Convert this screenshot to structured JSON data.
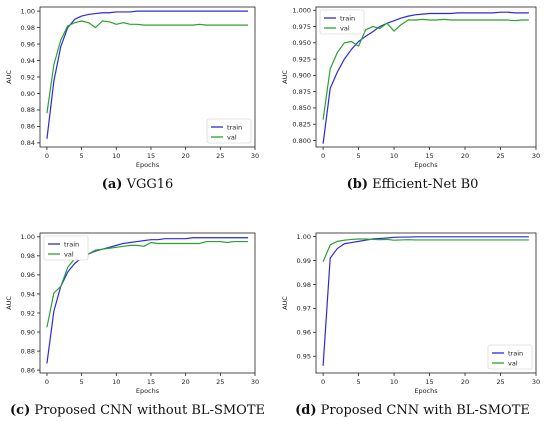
{
  "chart_data": [
    {
      "type": "line",
      "caption_label": "(a)",
      "caption_text": "VGG16",
      "xlabel": "Epochs",
      "ylabel": "AUC",
      "xlim": [
        -1,
        30
      ],
      "ylim": [
        0.835,
        1.005
      ],
      "xticks": [
        0,
        5,
        10,
        15,
        20,
        25,
        30
      ],
      "yticks": [
        0.84,
        0.86,
        0.88,
        0.9,
        0.92,
        0.94,
        0.96,
        0.98,
        1.0
      ],
      "ytick_labels": [
        "0.84",
        "0.86",
        "0.88",
        "0.90",
        "0.92",
        "0.94",
        "0.96",
        "0.98",
        "1.00"
      ],
      "legend_position": "bottom-right",
      "series": [
        {
          "name": "train",
          "color": "#2b2bd6",
          "x": [
            0,
            1,
            2,
            3,
            4,
            5,
            6,
            7,
            8,
            9,
            10,
            11,
            12,
            13,
            14,
            15,
            16,
            17,
            18,
            19,
            20,
            21,
            22,
            23,
            24,
            25,
            26,
            27,
            28,
            29
          ],
          "values": [
            0.845,
            0.915,
            0.957,
            0.98,
            0.99,
            0.994,
            0.996,
            0.997,
            0.998,
            0.998,
            0.999,
            0.999,
            0.999,
            1.0,
            1.0,
            1.0,
            1.0,
            1.0,
            1.0,
            1.0,
            1.0,
            1.0,
            1.0,
            1.0,
            1.0,
            1.0,
            1.0,
            1.0,
            1.0,
            1.0
          ]
        },
        {
          "name": "val",
          "color": "#2ca02c",
          "x": [
            0,
            1,
            2,
            3,
            4,
            5,
            6,
            7,
            8,
            9,
            10,
            11,
            12,
            13,
            14,
            15,
            16,
            17,
            18,
            19,
            20,
            21,
            22,
            23,
            24,
            25,
            26,
            27,
            28,
            29
          ],
          "values": [
            0.876,
            0.935,
            0.965,
            0.982,
            0.986,
            0.988,
            0.986,
            0.98,
            0.988,
            0.987,
            0.984,
            0.986,
            0.984,
            0.984,
            0.983,
            0.983,
            0.983,
            0.983,
            0.983,
            0.983,
            0.983,
            0.983,
            0.984,
            0.983,
            0.983,
            0.983,
            0.983,
            0.983,
            0.983,
            0.983
          ]
        }
      ]
    },
    {
      "type": "line",
      "caption_label": "(b)",
      "caption_text": "Efficient-Net B0",
      "xlabel": "Epochs",
      "ylabel": "AUC",
      "xlim": [
        -1,
        30
      ],
      "ylim": [
        0.79,
        1.005
      ],
      "xticks": [
        0,
        5,
        10,
        15,
        20,
        25,
        30
      ],
      "yticks": [
        0.8,
        0.825,
        0.85,
        0.875,
        0.9,
        0.925,
        0.95,
        0.975,
        1.0
      ],
      "ytick_labels": [
        "0.800",
        "0.825",
        "0.850",
        "0.875",
        "0.900",
        "0.925",
        "0.950",
        "0.975",
        "1.000"
      ],
      "legend_position": "top-left",
      "series": [
        {
          "name": "train",
          "color": "#2b2bd6",
          "x": [
            0,
            1,
            2,
            3,
            4,
            5,
            6,
            7,
            8,
            9,
            10,
            11,
            12,
            13,
            14,
            15,
            16,
            17,
            18,
            19,
            20,
            21,
            22,
            23,
            24,
            25,
            26,
            27,
            28,
            29
          ],
          "values": [
            0.795,
            0.88,
            0.905,
            0.925,
            0.94,
            0.952,
            0.96,
            0.967,
            0.975,
            0.98,
            0.984,
            0.988,
            0.991,
            0.993,
            0.994,
            0.995,
            0.995,
            0.995,
            0.995,
            0.996,
            0.996,
            0.996,
            0.996,
            0.996,
            0.996,
            0.997,
            0.997,
            0.996,
            0.996,
            0.996
          ]
        },
        {
          "name": "val",
          "color": "#2ca02c",
          "x": [
            0,
            1,
            2,
            3,
            4,
            5,
            6,
            7,
            8,
            9,
            10,
            11,
            12,
            13,
            14,
            15,
            16,
            17,
            18,
            19,
            20,
            21,
            22,
            23,
            24,
            25,
            26,
            27,
            28,
            29
          ],
          "values": [
            0.832,
            0.91,
            0.935,
            0.95,
            0.952,
            0.945,
            0.97,
            0.975,
            0.972,
            0.98,
            0.968,
            0.978,
            0.985,
            0.985,
            0.986,
            0.985,
            0.985,
            0.986,
            0.985,
            0.985,
            0.985,
            0.985,
            0.985,
            0.985,
            0.985,
            0.985,
            0.985,
            0.984,
            0.985,
            0.985
          ]
        }
      ]
    },
    {
      "type": "line",
      "caption_label": "(c)",
      "caption_text": "Proposed CNN without BL-SMOTE",
      "xlabel": "Epochs",
      "ylabel": "AUC",
      "xlim": [
        -1,
        30
      ],
      "ylim": [
        0.857,
        1.004
      ],
      "xticks": [
        0,
        5,
        10,
        15,
        20,
        25,
        30
      ],
      "yticks": [
        0.86,
        0.88,
        0.9,
        0.92,
        0.94,
        0.96,
        0.98,
        1.0
      ],
      "ytick_labels": [
        "0.86",
        "0.88",
        "0.90",
        "0.92",
        "0.94",
        "0.96",
        "0.98",
        "1.00"
      ],
      "legend_position": "top-left",
      "series": [
        {
          "name": "train",
          "color": "#2b2bd6",
          "x": [
            0,
            1,
            2,
            3,
            4,
            5,
            6,
            7,
            8,
            9,
            10,
            11,
            12,
            13,
            14,
            15,
            16,
            17,
            18,
            19,
            20,
            21,
            22,
            23,
            24,
            25,
            26,
            27,
            28,
            29
          ],
          "values": [
            0.867,
            0.922,
            0.948,
            0.963,
            0.972,
            0.978,
            0.982,
            0.985,
            0.987,
            0.989,
            0.991,
            0.993,
            0.994,
            0.995,
            0.996,
            0.997,
            0.997,
            0.998,
            0.998,
            0.998,
            0.998,
            0.999,
            0.999,
            0.999,
            0.999,
            0.999,
            0.999,
            0.999,
            0.999,
            0.999
          ]
        },
        {
          "name": "val",
          "color": "#2ca02c",
          "x": [
            0,
            1,
            2,
            3,
            4,
            5,
            6,
            7,
            8,
            9,
            10,
            11,
            12,
            13,
            14,
            15,
            16,
            17,
            18,
            19,
            20,
            21,
            22,
            23,
            24,
            25,
            26,
            27,
            28,
            29
          ],
          "values": [
            0.905,
            0.941,
            0.948,
            0.968,
            0.977,
            0.98,
            0.982,
            0.986,
            0.987,
            0.988,
            0.989,
            0.99,
            0.991,
            0.991,
            0.99,
            0.994,
            0.993,
            0.993,
            0.993,
            0.993,
            0.993,
            0.993,
            0.993,
            0.995,
            0.995,
            0.995,
            0.994,
            0.995,
            0.995,
            0.995
          ]
        }
      ]
    },
    {
      "type": "line",
      "caption_label": "(d)",
      "caption_text": "Proposed CNN with BL-SMOTE",
      "xlabel": "Epochs",
      "ylabel": "AUC",
      "xlim": [
        -1,
        30
      ],
      "ylim": [
        0.943,
        1.0015
      ],
      "xticks": [
        0,
        5,
        10,
        15,
        20,
        25,
        30
      ],
      "yticks": [
        0.95,
        0.96,
        0.97,
        0.98,
        0.99,
        1.0
      ],
      "ytick_labels": [
        "0.95",
        "0.96",
        "0.97",
        "0.98",
        "0.99",
        "1.00"
      ],
      "legend_position": "bottom-right",
      "series": [
        {
          "name": "train",
          "color": "#2b2bd6",
          "x": [
            0,
            1,
            2,
            3,
            4,
            5,
            6,
            7,
            8,
            9,
            10,
            11,
            12,
            13,
            14,
            15,
            16,
            17,
            18,
            19,
            20,
            21,
            22,
            23,
            24,
            25,
            26,
            27,
            28,
            29
          ],
          "values": [
            0.946,
            0.991,
            0.995,
            0.997,
            0.9975,
            0.998,
            0.9985,
            0.999,
            0.9992,
            0.9994,
            0.9997,
            0.9998,
            0.9998,
            0.9999,
            0.9999,
            0.9999,
            0.9999,
            0.9999,
            0.9999,
            0.9999,
            0.9999,
            0.9999,
            0.9999,
            0.9999,
            0.9999,
            0.9999,
            0.9999,
            0.9999,
            0.9999,
            0.9999
          ]
        },
        {
          "name": "val",
          "color": "#2ca02c",
          "x": [
            0,
            1,
            2,
            3,
            4,
            5,
            6,
            7,
            8,
            9,
            10,
            11,
            12,
            13,
            14,
            15,
            16,
            17,
            18,
            19,
            20,
            21,
            22,
            23,
            24,
            25,
            26,
            27,
            28,
            29
          ],
          "values": [
            0.9895,
            0.9965,
            0.998,
            0.9985,
            0.9988,
            0.999,
            0.999,
            0.9988,
            0.9987,
            0.9988,
            0.9985,
            0.9986,
            0.9987,
            0.9986,
            0.9986,
            0.9986,
            0.9986,
            0.9986,
            0.9986,
            0.9986,
            0.9986,
            0.9986,
            0.9986,
            0.9986,
            0.9986,
            0.9986,
            0.9986,
            0.9986,
            0.9986,
            0.9986
          ]
        }
      ]
    }
  ]
}
